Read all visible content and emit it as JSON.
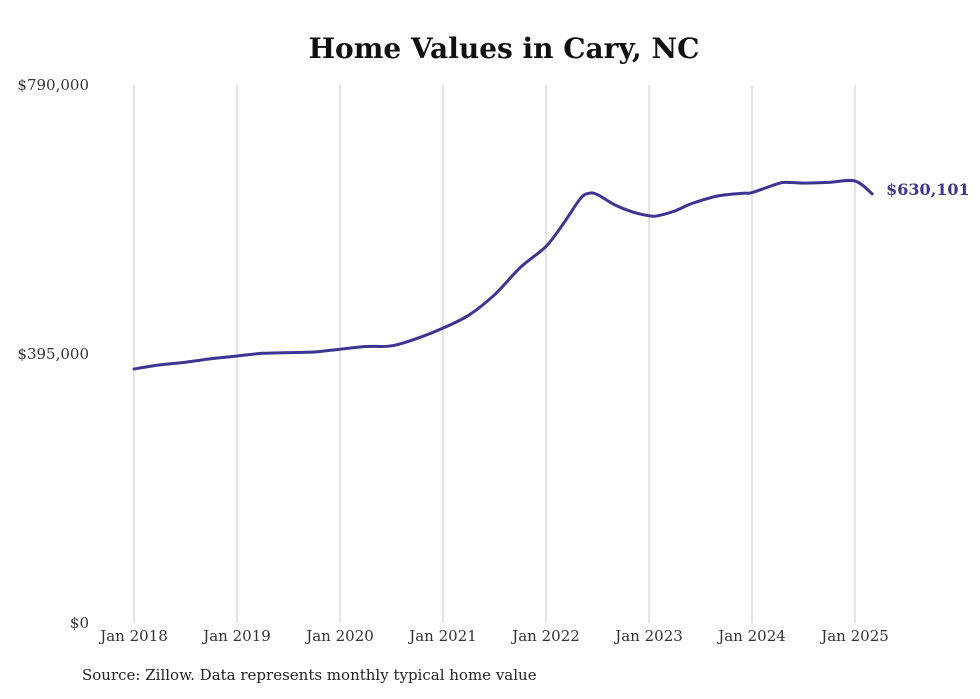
{
  "colors": {
    "line": "#3d3591",
    "grid": "#c8c8c8",
    "text": "#333333"
  },
  "chart_data": {
    "type": "line",
    "title": "Home Values in Cary, NC",
    "xlabel": "",
    "ylabel": "",
    "grid": "vertical",
    "y_ticks": [
      {
        "value": 0,
        "label": "$0"
      },
      {
        "value": 395000,
        "label": "$395,000"
      },
      {
        "value": 790000,
        "label": "$790,000"
      }
    ],
    "ylim": [
      0,
      790000
    ],
    "x_ticks": [
      {
        "value": "2018-01",
        "label": "Jan 2018"
      },
      {
        "value": "2019-01",
        "label": "Jan 2019"
      },
      {
        "value": "2020-01",
        "label": "Jan 2020"
      },
      {
        "value": "2021-01",
        "label": "Jan 2021"
      },
      {
        "value": "2022-01",
        "label": "Jan 2022"
      },
      {
        "value": "2023-01",
        "label": "Jan 2023"
      },
      {
        "value": "2024-01",
        "label": "Jan 2024"
      },
      {
        "value": "2025-01",
        "label": "Jan 2025"
      }
    ],
    "xlim": [
      "2018-01",
      "2025-03"
    ],
    "series": [
      {
        "x": [
          "2018-01",
          "2018-04",
          "2018-07",
          "2018-10",
          "2019-01",
          "2019-04",
          "2019-07",
          "2019-10",
          "2020-01",
          "2020-04",
          "2020-07",
          "2020-10",
          "2021-01",
          "2021-04",
          "2021-07",
          "2021-10",
          "2022-01",
          "2022-03",
          "2022-05",
          "2022-06",
          "2022-07",
          "2022-09",
          "2022-11",
          "2023-01",
          "2023-02",
          "2023-04",
          "2023-06",
          "2023-09",
          "2023-12",
          "2024-01",
          "2024-04",
          "2024-05",
          "2024-07",
          "2024-10",
          "2025-01",
          "2025-03"
        ],
        "values": [
          373000,
          379000,
          383000,
          388000,
          392000,
          396000,
          397000,
          398000,
          402000,
          406000,
          407000,
          418000,
          433000,
          452000,
          482000,
          522000,
          553000,
          586000,
          623000,
          631000,
          629000,
          614000,
          604000,
          598000,
          598000,
          605000,
          616000,
          627000,
          631000,
          632000,
          645000,
          647000,
          646000,
          647000,
          649000,
          630101
        ],
        "end_label": "$630,101"
      }
    ],
    "source": "Source: Zillow. Data represents monthly typical home value"
  }
}
